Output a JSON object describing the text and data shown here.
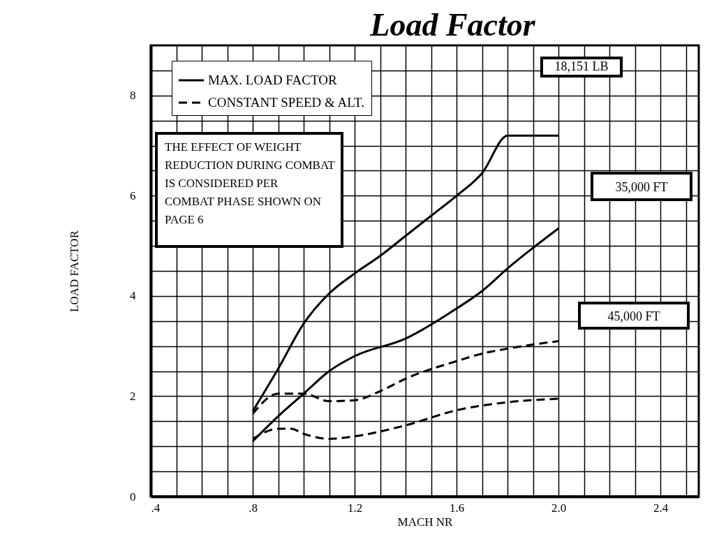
{
  "chart_data": {
    "type": "line",
    "title": "Load Factor",
    "xlabel": "MACH NR",
    "ylabel": "LOAD FACTOR",
    "xlim": [
      0.4,
      2.55
    ],
    "ylim": [
      0,
      9
    ],
    "xticks": [
      {
        "value": 0.4,
        "label": ".4"
      },
      {
        "value": 0.5,
        "label": null
      },
      {
        "value": 0.6,
        "label": null
      },
      {
        "value": 0.7,
        "label": null
      },
      {
        "value": 0.8,
        "label": ".8"
      },
      {
        "value": 0.9,
        "label": null
      },
      {
        "value": 1.0,
        "label": null
      },
      {
        "value": 1.1,
        "label": null
      },
      1.2,
      {
        "value": 1.3,
        "label": null
      },
      {
        "value": 1.4,
        "label": null
      },
      {
        "value": 1.5,
        "label": null
      },
      1.6,
      {
        "value": 1.7,
        "label": null
      },
      {
        "value": 1.8,
        "label": null
      },
      {
        "value": 1.9,
        "label": null
      },
      {
        "value": 2.0,
        "label": "2.0"
      },
      {
        "value": 2.1,
        "label": null
      },
      {
        "value": 2.2,
        "label": null
      },
      {
        "value": 2.3,
        "label": null
      },
      2.4,
      {
        "value": 2.5,
        "label": null
      }
    ],
    "yticks": [
      0,
      {
        "value": 0.5,
        "label": null
      },
      {
        "value": 1,
        "label": null
      },
      {
        "value": 1.5,
        "label": null
      },
      2,
      {
        "value": 2.5,
        "label": null
      },
      {
        "value": 3,
        "label": null
      },
      {
        "value": 3.5,
        "label": null
      },
      4,
      {
        "value": 4.5,
        "label": null
      },
      {
        "value": 5,
        "label": null
      },
      {
        "value": 5.5,
        "label": null
      },
      6,
      {
        "value": 6.5,
        "label": null
      },
      {
        "value": 7,
        "label": null
      },
      {
        "value": 7.5,
        "label": null
      },
      8,
      {
        "value": 8.5,
        "label": null
      }
    ],
    "grid": true,
    "legend": "top left",
    "series": [
      {
        "name": "MAX. LOAD FACTOR",
        "color": "#000000",
        "line_style": "solid",
        "x": [
          0.8,
          0.9,
          1.0,
          1.1,
          1.2,
          1.3,
          1.4,
          1.5,
          1.6,
          1.7,
          1.8,
          2.0
        ],
        "values": [
          1.7,
          2.55,
          3.45,
          4.05,
          4.45,
          4.8,
          5.2,
          5.6,
          6.0,
          6.45,
          7.2,
          7.2
        ]
      },
      {
        "color": "#000000",
        "line_style": "solid",
        "x": [
          0.8,
          0.9,
          1.0,
          1.1,
          1.2,
          1.4,
          1.6,
          1.7,
          1.8,
          2.0
        ],
        "values": [
          1.1,
          1.6,
          2.05,
          2.5,
          2.8,
          3.15,
          3.75,
          4.1,
          4.55,
          5.35
        ]
      },
      {
        "name": "CONSTANT SPEED & ALT.",
        "color": "#000000",
        "line_style": "dashed",
        "x": [
          0.8,
          0.9,
          1.0,
          1.1,
          1.2,
          1.3,
          1.4,
          1.6,
          1.7,
          1.8,
          2.0
        ],
        "values": [
          1.65,
          2.05,
          2.05,
          1.9,
          1.92,
          2.1,
          2.35,
          2.7,
          2.85,
          2.95,
          3.1
        ]
      },
      {
        "color": "#000000",
        "line_style": "dashed",
        "x": [
          0.8,
          0.9,
          0.95,
          1.0,
          1.1,
          1.2,
          1.4,
          1.6,
          1.8,
          2.0
        ],
        "values": [
          1.15,
          1.35,
          1.35,
          1.25,
          1.15,
          1.2,
          1.42,
          1.72,
          1.88,
          1.95
        ]
      }
    ],
    "annotations": [
      "18,151 LB",
      "THE EFFECT OF WEIGHT REDUCTION DURING COMBAT IS CONSIDERED PER COMBAT PHASE SHOWN ON PAGE 6",
      "35,000 FT",
      "45,000 FT"
    ]
  }
}
